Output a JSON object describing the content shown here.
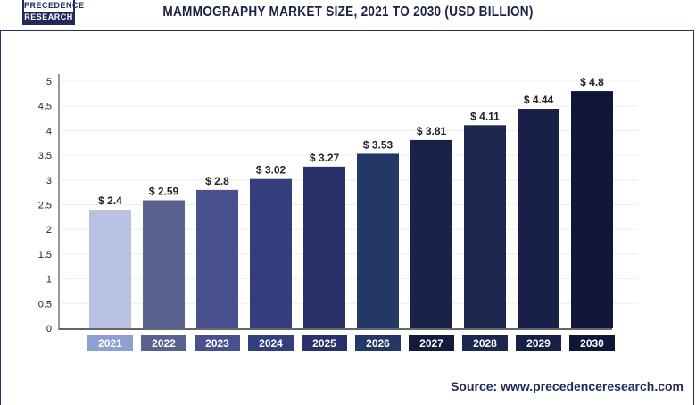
{
  "logo": {
    "line1": "PRECEDENCE",
    "line2": "RESEARCH"
  },
  "source": "Source: www.precedenceresearch.com",
  "chart_data": {
    "type": "bar",
    "title": "MAMMOGRAPHY MARKET SIZE, 2021 TO 2030 (USD BILLION)",
    "categories": [
      "2021",
      "2022",
      "2023",
      "2024",
      "2025",
      "2026",
      "2027",
      "2028",
      "2029",
      "2030"
    ],
    "values": [
      2.4,
      2.59,
      2.8,
      3.02,
      3.27,
      3.53,
      3.81,
      4.11,
      4.44,
      4.8
    ],
    "data_labels": [
      "$ 2.4",
      "$ 2.59",
      "$ 2.8",
      "$ 3.02",
      "$ 3.27",
      "$ 3.53",
      "$ 3.81",
      "$ 4.11",
      "$ 4.44",
      "$ 4.8"
    ],
    "yticks": [
      "0",
      "0.5",
      "1",
      "1.5",
      "2",
      "2.5",
      "3",
      "3.5",
      "4",
      "4.5",
      "5"
    ],
    "ylim": [
      0,
      5
    ],
    "grid": true,
    "xlabel": "",
    "ylabel": "",
    "bar_colors": [
      "#b9c1e2",
      "#59628f",
      "#48508d",
      "#353e7c",
      "#29306a",
      "#233866",
      "#1a2248",
      "#1b274f",
      "#182048",
      "#0f1637"
    ],
    "label_colors": [
      "#8e9fd2",
      "#59628f",
      "#48508d",
      "#353e7c",
      "#29306a",
      "#233866",
      "#131a3d",
      "#1b274f",
      "#182048",
      "#0f1637"
    ]
  }
}
